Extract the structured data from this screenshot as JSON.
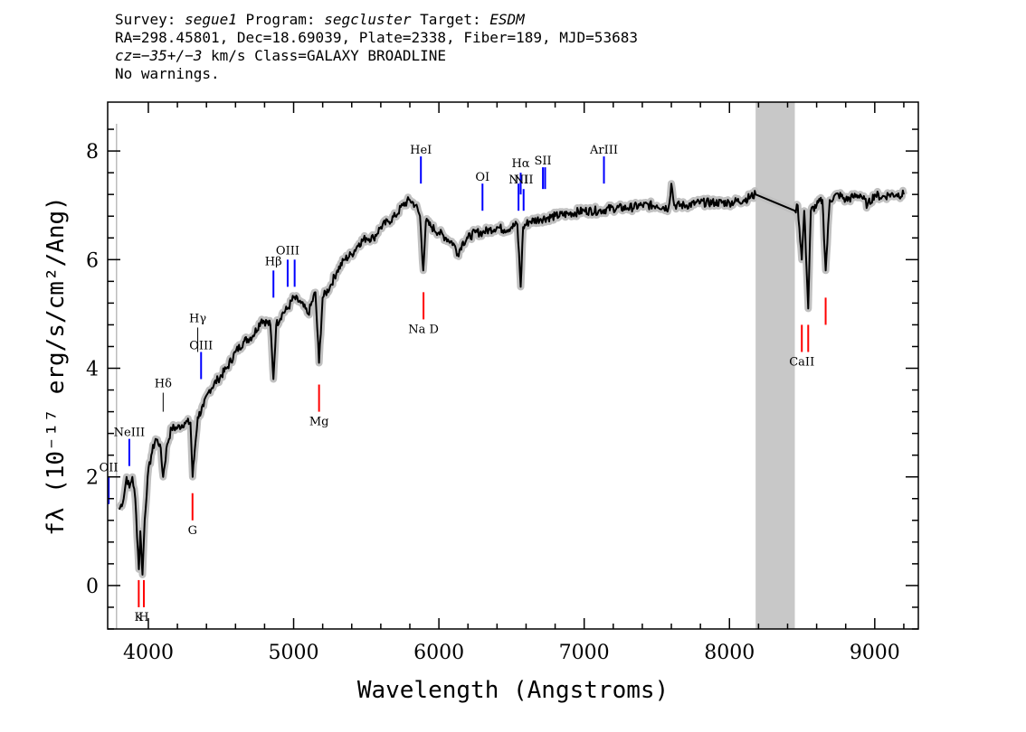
{
  "header": {
    "line1": {
      "survey_label": "Survey: ",
      "survey": "segue1",
      "program_label": " Program: ",
      "program": "segcluster",
      "target_label": " Target: ",
      "target": "ESDM"
    },
    "line2": "RA=298.45801, Dec=18.69039, Plate=2338, Fiber=189, MJD=53683",
    "line3": {
      "cz_label": "cz=",
      "cz_value": "−35+/−3",
      "rest": " km/s Class=GALAXY BROADLINE"
    },
    "line4": "No warnings."
  },
  "chart_data": {
    "type": "line",
    "xlabel": "Wavelength (Angstroms)",
    "ylabel": "fλ (10⁻¹⁷ erg/s/cm²/Ang)",
    "xlim": [
      3720,
      9300
    ],
    "ylim": [
      -0.8,
      8.9
    ],
    "x_ticks": [
      4000,
      5000,
      6000,
      7000,
      8000,
      9000
    ],
    "y_ticks": [
      0,
      2,
      4,
      6,
      8
    ],
    "masked_region": [
      8180,
      8450
    ],
    "colors": {
      "spectrum": "#000000",
      "error": "#c0c0c0",
      "emission": "#0000ff",
      "absorption": "#ff0000",
      "mask": "#c8c8c8",
      "gray_line": "#9a9a9a"
    },
    "spectrum": [
      [
        3800,
        1.4
      ],
      [
        3830,
        1.6
      ],
      [
        3850,
        2.0
      ],
      [
        3870,
        1.8
      ],
      [
        3890,
        2.0
      ],
      [
        3910,
        1.6
      ],
      [
        3935,
        0.3
      ],
      [
        3945,
        1.0
      ],
      [
        3960,
        0.2
      ],
      [
        3975,
        1.2
      ],
      [
        3995,
        2.0
      ],
      [
        4020,
        2.4
      ],
      [
        4050,
        2.7
      ],
      [
        4080,
        2.6
      ],
      [
        4102,
        2.0
      ],
      [
        4130,
        2.6
      ],
      [
        4160,
        2.9
      ],
      [
        4200,
        2.9
      ],
      [
        4250,
        3.0
      ],
      [
        4290,
        3.0
      ],
      [
        4305,
        2.0
      ],
      [
        4320,
        2.5
      ],
      [
        4340,
        3.1
      ],
      [
        4380,
        3.3
      ],
      [
        4420,
        3.6
      ],
      [
        4480,
        3.8
      ],
      [
        4540,
        4.0
      ],
      [
        4600,
        4.3
      ],
      [
        4660,
        4.5
      ],
      [
        4720,
        4.6
      ],
      [
        4780,
        4.9
      ],
      [
        4840,
        4.8
      ],
      [
        4861,
        3.8
      ],
      [
        4880,
        4.8
      ],
      [
        4920,
        5.0
      ],
      [
        4960,
        5.1
      ],
      [
        5000,
        5.3
      ],
      [
        5050,
        5.2
      ],
      [
        5100,
        5.0
      ],
      [
        5150,
        5.4
      ],
      [
        5175,
        4.1
      ],
      [
        5200,
        5.3
      ],
      [
        5250,
        5.5
      ],
      [
        5300,
        5.8
      ],
      [
        5350,
        6.0
      ],
      [
        5400,
        6.1
      ],
      [
        5450,
        6.3
      ],
      [
        5500,
        6.4
      ],
      [
        5550,
        6.4
      ],
      [
        5600,
        6.6
      ],
      [
        5650,
        6.7
      ],
      [
        5700,
        6.8
      ],
      [
        5750,
        7.0
      ],
      [
        5800,
        7.1
      ],
      [
        5840,
        7.0
      ],
      [
        5870,
        6.8
      ],
      [
        5892,
        5.8
      ],
      [
        5910,
        6.7
      ],
      [
        5950,
        6.6
      ],
      [
        6000,
        6.5
      ],
      [
        6050,
        6.4
      ],
      [
        6100,
        6.3
      ],
      [
        6130,
        6.1
      ],
      [
        6160,
        6.3
      ],
      [
        6200,
        6.4
      ],
      [
        6250,
        6.5
      ],
      [
        6300,
        6.5
      ],
      [
        6350,
        6.55
      ],
      [
        6400,
        6.6
      ],
      [
        6450,
        6.55
      ],
      [
        6500,
        6.6
      ],
      [
        6540,
        6.65
      ],
      [
        6563,
        5.5
      ],
      [
        6580,
        6.6
      ],
      [
        6620,
        6.7
      ],
      [
        6700,
        6.75
      ],
      [
        6800,
        6.8
      ],
      [
        6900,
        6.85
      ],
      [
        7000,
        6.9
      ],
      [
        7100,
        6.9
      ],
      [
        7200,
        6.95
      ],
      [
        7300,
        6.95
      ],
      [
        7400,
        7.0
      ],
      [
        7500,
        7.0
      ],
      [
        7580,
        6.95
      ],
      [
        7600,
        7.4
      ],
      [
        7620,
        7.0
      ],
      [
        7700,
        7.0
      ],
      [
        7800,
        7.05
      ],
      [
        7900,
        7.05
      ],
      [
        8000,
        7.05
      ],
      [
        8100,
        7.1
      ],
      [
        8180,
        7.2
      ],
      [
        8450,
        6.9
      ],
      [
        8470,
        7.0
      ],
      [
        8498,
        6.0
      ],
      [
        8515,
        6.9
      ],
      [
        8542,
        5.1
      ],
      [
        8560,
        6.9
      ],
      [
        8600,
        7.0
      ],
      [
        8640,
        7.1
      ],
      [
        8662,
        5.8
      ],
      [
        8690,
        7.1
      ],
      [
        8750,
        7.2
      ],
      [
        8800,
        7.1
      ],
      [
        8850,
        7.15
      ],
      [
        8900,
        7.2
      ],
      [
        8950,
        7.0
      ],
      [
        9000,
        7.2
      ],
      [
        9050,
        7.15
      ],
      [
        9100,
        7.2
      ],
      [
        9150,
        7.2
      ],
      [
        9200,
        7.2
      ]
    ],
    "emission_lines": [
      {
        "label": "OII",
        "x": 3727,
        "y1": 1.5,
        "y2": 2.0,
        "ly": 2.1,
        "color": "blue"
      },
      {
        "label": "NeIII",
        "x": 3869,
        "y1": 2.2,
        "y2": 2.7,
        "ly": 2.75,
        "color": "blue"
      },
      {
        "label": "Hδ",
        "x": 4102,
        "y1": 3.2,
        "y2": 3.55,
        "ly": 3.65,
        "color": "black"
      },
      {
        "label": "Hγ",
        "x": 4340,
        "y1": 4.3,
        "y2": 4.75,
        "ly": 4.85,
        "color": "black"
      },
      {
        "label": "OIII",
        "x": 4363,
        "y1": 3.8,
        "y2": 4.3,
        "ly": 4.35,
        "color": "blue"
      },
      {
        "label": "Hβ",
        "x": 4861,
        "y1": 5.3,
        "y2": 5.8,
        "ly": 5.9,
        "color": "blue"
      },
      {
        "label": "OIII",
        "x": 4959,
        "y1": 5.5,
        "y2": 6.0,
        "ly": 6.1,
        "color": "blue"
      },
      {
        "label": "",
        "x": 5007,
        "y1": 5.5,
        "y2": 6.0,
        "ly": 0,
        "color": "blue"
      },
      {
        "label": "HeI",
        "x": 5876,
        "y1": 7.4,
        "y2": 7.9,
        "ly": 7.95,
        "color": "blue"
      },
      {
        "label": "OI",
        "x": 6300,
        "y1": 6.9,
        "y2": 7.4,
        "ly": 7.45,
        "color": "blue"
      },
      {
        "label": "NII",
        "x": 6548,
        "y1": 6.9,
        "y2": 7.4,
        "ly": 7.4,
        "color": "blue"
      },
      {
        "label": "Hα",
        "x": 6563,
        "y1": 7.2,
        "y2": 7.6,
        "ly": 7.7,
        "color": "blue"
      },
      {
        "label": "NII",
        "x": 6583,
        "y1": 6.9,
        "y2": 7.3,
        "ly": 7.4,
        "color": "blue"
      },
      {
        "label": "SII",
        "x": 6716,
        "y1": 7.3,
        "y2": 7.7,
        "ly": 7.75,
        "color": "blue"
      },
      {
        "label": "",
        "x": 6731,
        "y1": 7.3,
        "y2": 7.7,
        "ly": 0,
        "color": "blue"
      },
      {
        "label": "ArIII",
        "x": 7136,
        "y1": 7.4,
        "y2": 7.9,
        "ly": 7.95,
        "color": "blue"
      }
    ],
    "absorption_lines": [
      {
        "label": "K",
        "x": 3934,
        "y1": -0.4,
        "y2": 0.1,
        "ly": -0.65,
        "color": "red"
      },
      {
        "label": "H",
        "x": 3969,
        "y1": -0.4,
        "y2": 0.1,
        "ly": -0.65,
        "color": "red"
      },
      {
        "label": "G",
        "x": 4304,
        "y1": 1.2,
        "y2": 1.7,
        "ly": 0.95,
        "color": "red"
      },
      {
        "label": "Mg",
        "x": 5175,
        "y1": 3.2,
        "y2": 3.7,
        "ly": 2.95,
        "color": "red"
      },
      {
        "label": "Na D",
        "x": 5894,
        "y1": 4.9,
        "y2": 5.4,
        "ly": 4.65,
        "color": "red"
      },
      {
        "label": "CaII",
        "x": 8498,
        "y1": 4.3,
        "y2": 4.8,
        "ly": 4.05,
        "color": "red"
      },
      {
        "label": "",
        "x": 8542,
        "y1": 4.3,
        "y2": 4.8,
        "ly": 0,
        "color": "red"
      },
      {
        "label": "",
        "x": 8662,
        "y1": 4.8,
        "y2": 5.3,
        "ly": 0,
        "color": "red"
      }
    ]
  }
}
